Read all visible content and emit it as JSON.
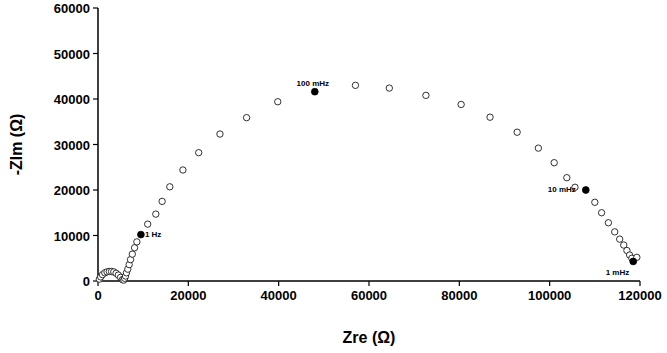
{
  "chart_data": {
    "type": "scatter",
    "xlabel": "Zre (Ω)",
    "ylabel": "-ZIm (Ω)",
    "x": [
      300,
      600,
      1000,
      1500,
      2000,
      2500,
      3000,
      3500,
      4000,
      4500,
      5000,
      5400,
      5700,
      5900,
      6100,
      6300,
      6600,
      6900,
      7200,
      7600,
      8100,
      8600,
      11000,
      12800,
      14200,
      15900,
      18800,
      22300,
      27000,
      32900,
      39800,
      57000,
      64500,
      72600,
      80400,
      86800,
      92800,
      97500,
      101000,
      103800,
      105600,
      110000,
      111500,
      113000,
      114400,
      115500,
      116400,
      117100,
      117700,
      118200,
      119300
    ],
    "y": [
      400,
      900,
      1400,
      1800,
      2000,
      2100,
      2100,
      2000,
      1700,
      1300,
      800,
      300,
      200,
      600,
      1100,
      1800,
      2600,
      3600,
      4700,
      5900,
      7300,
      8600,
      12500,
      14700,
      17500,
      20700,
      24400,
      28200,
      32300,
      35900,
      39400,
      43000,
      42400,
      40800,
      38800,
      36000,
      32700,
      29200,
      26000,
      22700,
      20600,
      17300,
      15000,
      12800,
      10800,
      9200,
      7900,
      6700,
      5700,
      5000,
      5200
    ],
    "marker": "open",
    "annotations": [
      {
        "text": "1 Hz",
        "x": 9500,
        "y": 10200
      },
      {
        "text": "100 mHz",
        "x": 48000,
        "y": 41600
      },
      {
        "text": "10 mHz",
        "x": 108000,
        "y": 20000
      },
      {
        "text": "1 mHz",
        "x": 118500,
        "y": 4300
      }
    ],
    "xlim": [
      0,
      120000
    ],
    "xticks": [
      0,
      20000,
      40000,
      60000,
      80000,
      100000,
      120000
    ],
    "ylim": [
      0,
      60000
    ],
    "yticks": [
      0,
      10000,
      20000,
      30000,
      40000,
      50000,
      60000
    ],
    "grid": false
  }
}
